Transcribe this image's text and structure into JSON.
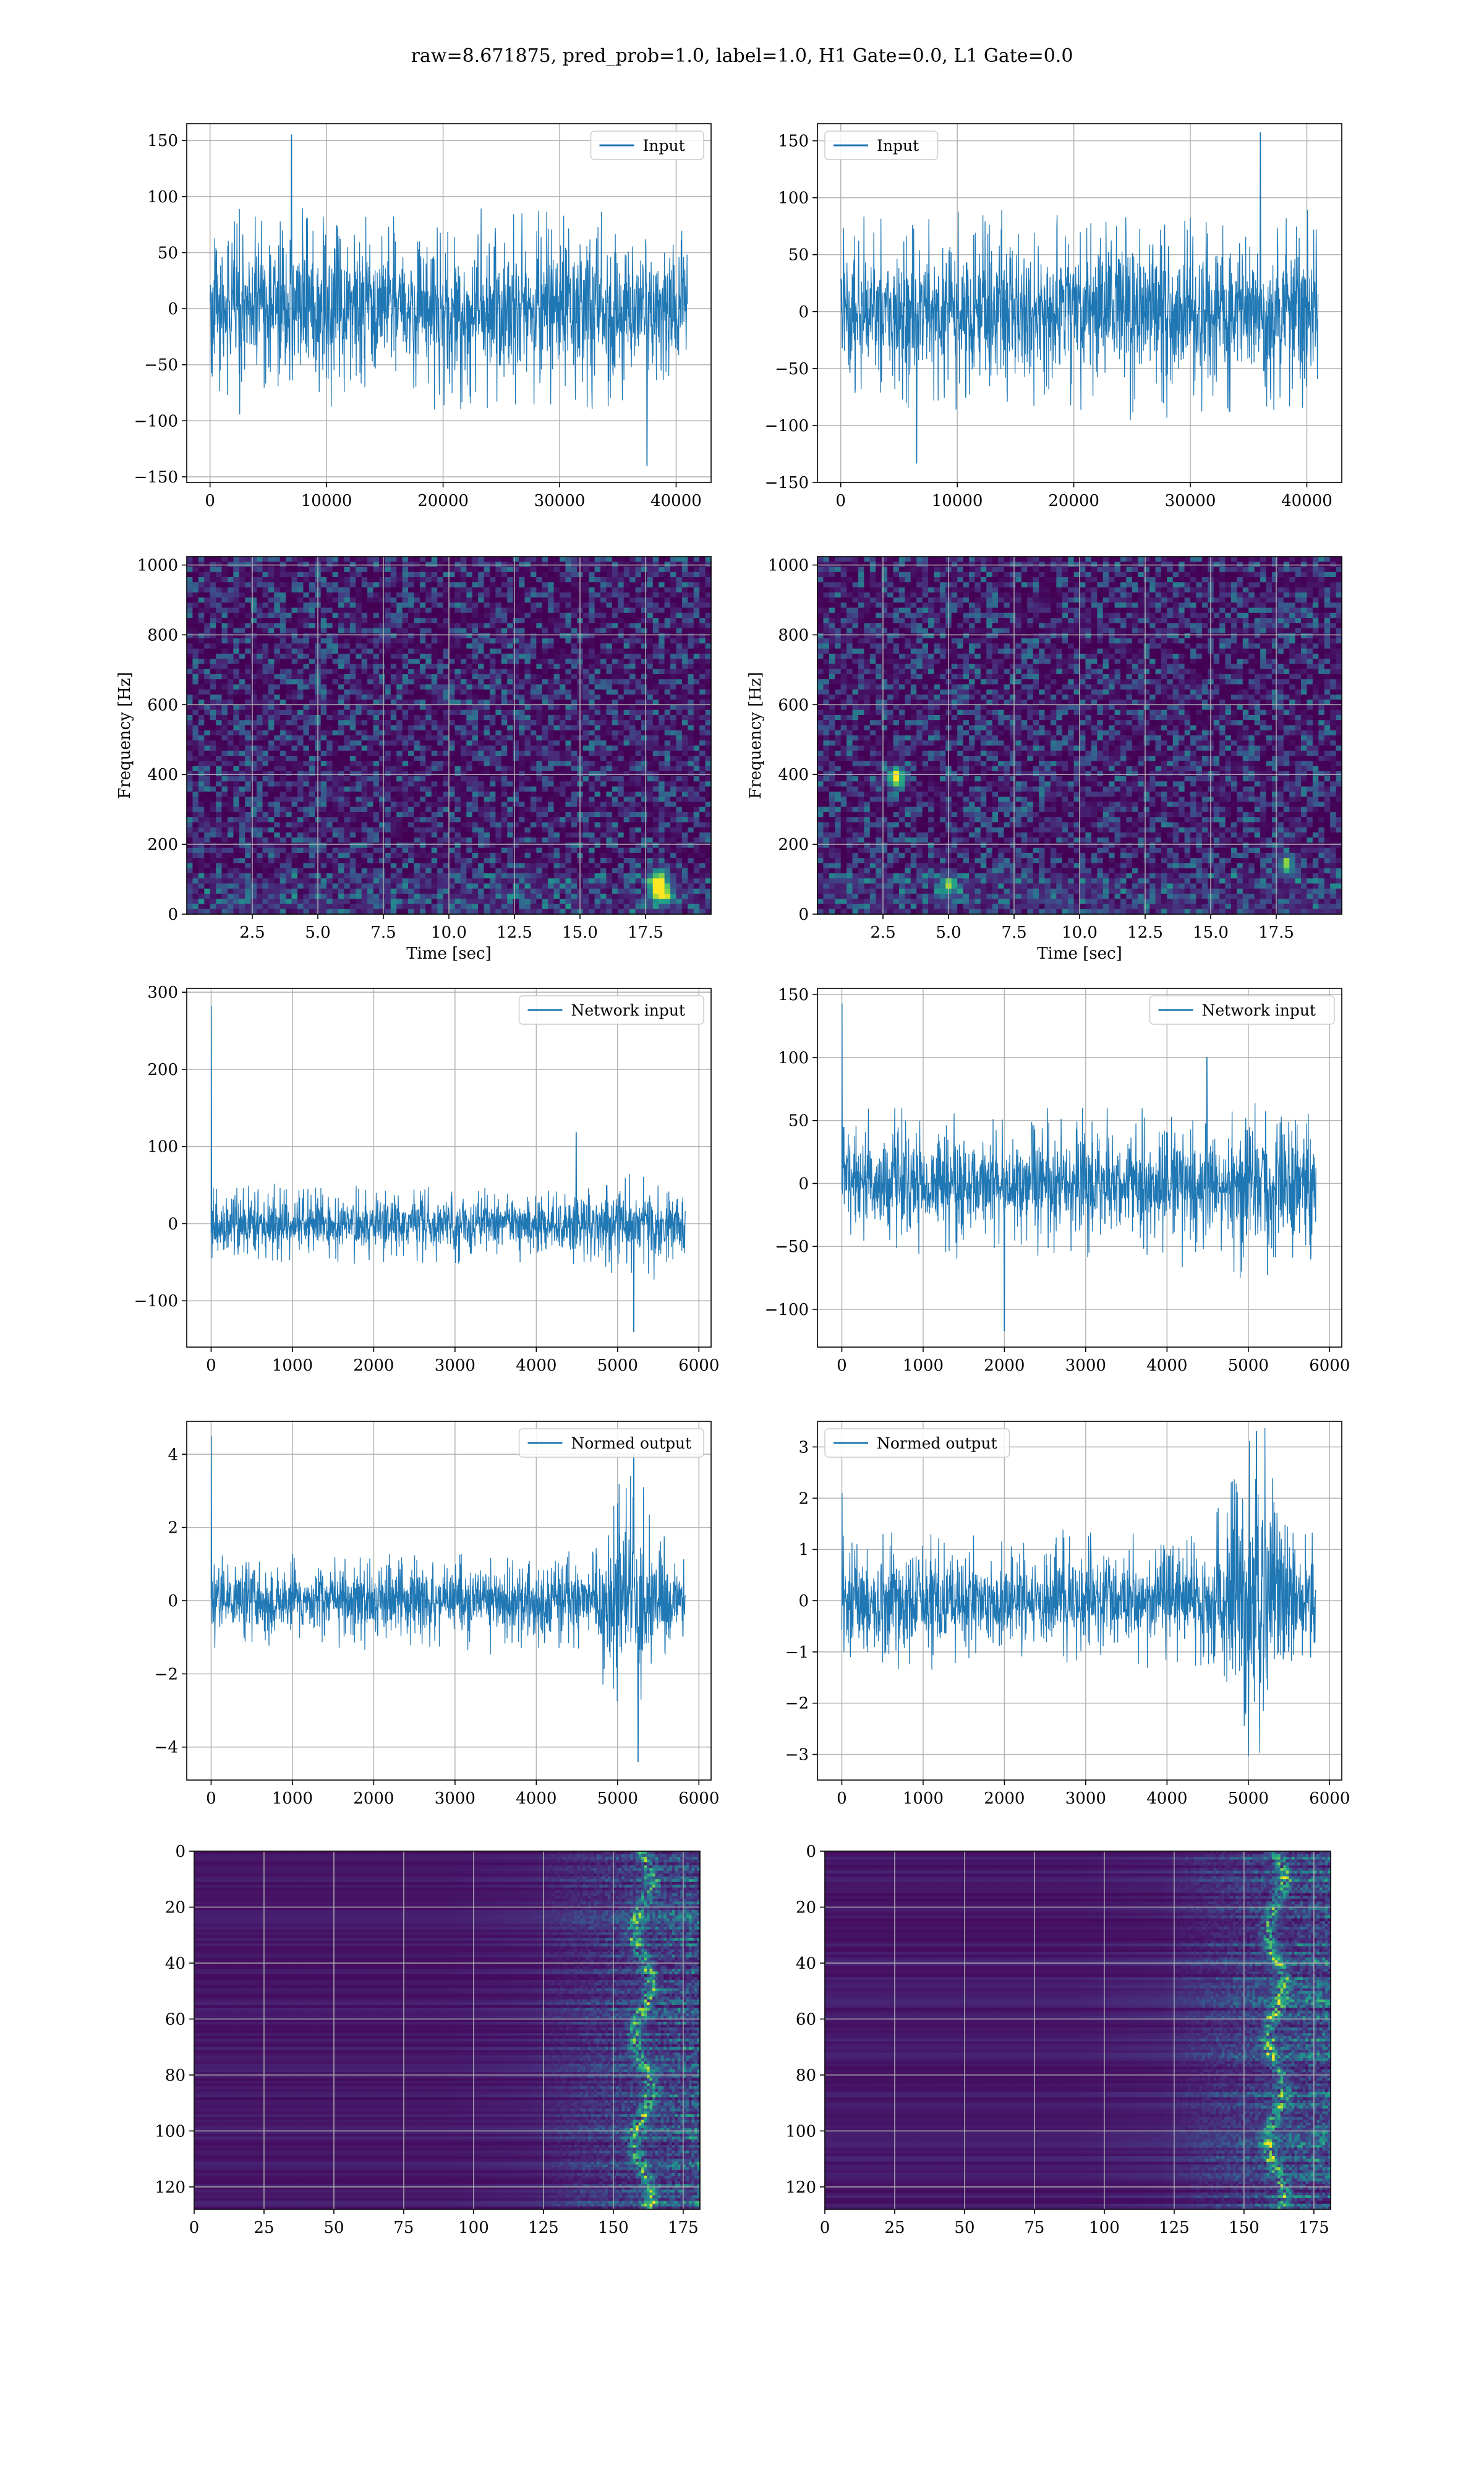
{
  "figure": {
    "title": "raw=8.671875, pred_prob=1.0, label=1.0, H1 Gate=0.0, L1 Gate=0.0"
  },
  "colors": {
    "line": "#1f77b4",
    "viridis_low": "#440154",
    "viridis_mid": "#21918c",
    "viridis_high": "#fde725"
  },
  "chart_data": [
    {
      "id": "input-h1",
      "type": "line",
      "title": "",
      "series": [
        {
          "name": "Input",
          "kind": "noise",
          "length": 40960,
          "amplitude_typical": 60,
          "y_max_peak": 155,
          "y_max_peak_x": 7000,
          "y_min_peak": -140,
          "y_min_peak_x": 37500
        }
      ],
      "xlim": [
        -2000,
        43000
      ],
      "ylim": [
        -155,
        165
      ],
      "xticks": [
        0,
        10000,
        20000,
        30000,
        40000
      ],
      "yticks": [
        -150,
        -100,
        -50,
        0,
        50,
        100,
        150
      ],
      "xlabel": "",
      "ylabel": "",
      "legend": "upper-right",
      "grid": true
    },
    {
      "id": "input-l1",
      "type": "line",
      "title": "",
      "series": [
        {
          "name": "Input",
          "kind": "noise",
          "length": 40960,
          "amplitude_typical": 60,
          "y_max_peak": 157,
          "y_max_peak_x": 36000,
          "y_min_peak": -133,
          "y_min_peak_x": 6500
        }
      ],
      "xlim": [
        -2000,
        43000
      ],
      "ylim": [
        -150,
        165
      ],
      "xticks": [
        0,
        10000,
        20000,
        30000,
        40000
      ],
      "yticks": [
        -150,
        -100,
        -50,
        0,
        50,
        100,
        150
      ],
      "xlabel": "",
      "ylabel": "",
      "legend": "upper-left",
      "grid": true
    },
    {
      "id": "spec-h1",
      "type": "heatmap",
      "title": "",
      "x_range": [
        0,
        20
      ],
      "y_range": [
        0,
        1024
      ],
      "xticks": [
        2.5,
        5.0,
        7.5,
        10.0,
        12.5,
        15.0,
        17.5
      ],
      "yticks": [
        0,
        200,
        400,
        600,
        800,
        1000
      ],
      "xlabel": "Time [sec]",
      "ylabel": "Frequency [Hz]",
      "colormap": "viridis",
      "hotspots": [
        {
          "x": 18.1,
          "y": 60,
          "intensity": 1.0
        },
        {
          "x": 18.0,
          "y": 100,
          "intensity": 0.7
        }
      ],
      "grid": true
    },
    {
      "id": "spec-l1",
      "type": "heatmap",
      "title": "",
      "x_range": [
        0,
        20
      ],
      "y_range": [
        0,
        1024
      ],
      "xticks": [
        2.5,
        5.0,
        7.5,
        10.0,
        12.5,
        15.0,
        17.5
      ],
      "yticks": [
        0,
        200,
        400,
        600,
        800,
        1000
      ],
      "xlabel": "Time [sec]",
      "ylabel": "Frequency [Hz]",
      "colormap": "viridis",
      "hotspots": [
        {
          "x": 3.0,
          "y": 390,
          "intensity": 0.9
        },
        {
          "x": 5.0,
          "y": 80,
          "intensity": 0.6
        },
        {
          "x": 17.9,
          "y": 140,
          "intensity": 0.6
        }
      ],
      "grid": true
    },
    {
      "id": "net-h1",
      "type": "line",
      "title": "",
      "series": [
        {
          "name": "Network input",
          "kind": "noise",
          "length": 5832,
          "amplitude_typical": 35,
          "start_spike": 282,
          "y_min_peak": -140,
          "y_min_peak_x": 5200,
          "late_peak": 118
        }
      ],
      "xlim": [
        -300,
        6150
      ],
      "ylim": [
        -160,
        305
      ],
      "xticks": [
        0,
        1000,
        2000,
        3000,
        4000,
        5000,
        6000
      ],
      "yticks": [
        -100,
        0,
        100,
        200,
        300
      ],
      "xlabel": "",
      "ylabel": "",
      "legend": "upper-right",
      "grid": true
    },
    {
      "id": "net-l1",
      "type": "line",
      "title": "",
      "series": [
        {
          "name": "Network input",
          "kind": "noise",
          "length": 5832,
          "amplitude_typical": 40,
          "start_spike": 143,
          "y_min_peak": -117,
          "y_min_peak_x": 2000,
          "late_peak": 100
        }
      ],
      "xlim": [
        -300,
        6150
      ],
      "ylim": [
        -130,
        155
      ],
      "xticks": [
        0,
        1000,
        2000,
        3000,
        4000,
        5000,
        6000
      ],
      "yticks": [
        -100,
        -50,
        0,
        50,
        100,
        150
      ],
      "xlabel": "",
      "ylabel": "",
      "legend": "upper-right",
      "grid": true
    },
    {
      "id": "norm-h1",
      "type": "line",
      "title": "",
      "series": [
        {
          "name": "Normed output",
          "kind": "burst",
          "length": 5832,
          "amplitude_typical": 0.9,
          "start_spike": 4.5,
          "burst_start": 4700,
          "burst_peak": 4.0,
          "burst_min": -4.4,
          "burst_min_x": 5250
        }
      ],
      "xlim": [
        -300,
        6150
      ],
      "ylim": [
        -4.9,
        4.9
      ],
      "xticks": [
        0,
        1000,
        2000,
        3000,
        4000,
        5000,
        6000
      ],
      "yticks": [
        -4,
        -2,
        0,
        2,
        4
      ],
      "xlabel": "",
      "ylabel": "",
      "legend": "upper-right",
      "grid": true
    },
    {
      "id": "norm-l1",
      "type": "line",
      "title": "",
      "series": [
        {
          "name": "Normed output",
          "kind": "burst",
          "length": 5832,
          "amplitude_typical": 0.9,
          "start_spike": 2.1,
          "burst_start": 4600,
          "burst_peak": 3.3,
          "burst_min": -3.2,
          "burst_min_x": 5100
        }
      ],
      "xlim": [
        -300,
        6150
      ],
      "ylim": [
        -3.5,
        3.5
      ],
      "xticks": [
        0,
        1000,
        2000,
        3000,
        4000,
        5000,
        6000
      ],
      "yticks": [
        -3,
        -2,
        -1,
        0,
        1,
        2,
        3
      ],
      "xlabel": "",
      "ylabel": "",
      "legend": "upper-left",
      "grid": true
    },
    {
      "id": "feat-h1",
      "type": "heatmap",
      "title": "",
      "x_range": [
        0,
        181
      ],
      "y_range": [
        0,
        128
      ],
      "xticks": [
        0,
        25,
        50,
        75,
        100,
        125,
        150,
        175
      ],
      "yticks": [
        0,
        20,
        40,
        60,
        80,
        100,
        120
      ],
      "xlabel": "",
      "ylabel": "",
      "colormap": "viridis",
      "y_inverted": true,
      "activity_start": 120,
      "hot_column": 160,
      "grid": true
    },
    {
      "id": "feat-l1",
      "type": "heatmap",
      "title": "",
      "x_range": [
        0,
        181
      ],
      "y_range": [
        0,
        128
      ],
      "xticks": [
        0,
        25,
        50,
        75,
        100,
        125,
        150,
        175
      ],
      "yticks": [
        0,
        20,
        40,
        60,
        80,
        100,
        120
      ],
      "xlabel": "",
      "ylabel": "",
      "colormap": "viridis",
      "y_inverted": true,
      "activity_start": 120,
      "hot_column": 161,
      "grid": true
    }
  ]
}
